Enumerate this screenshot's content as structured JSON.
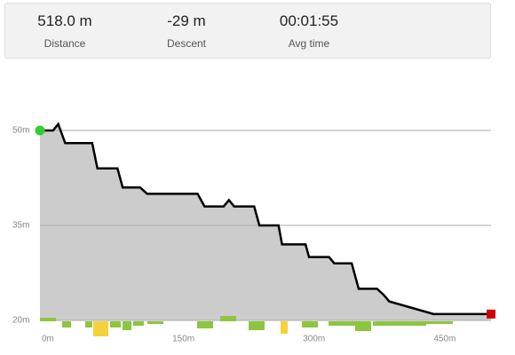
{
  "stats": [
    {
      "value": "518.0 m",
      "label": "Distance"
    },
    {
      "value": "-29 m",
      "label": "Descent"
    },
    {
      "value": "00:01:55",
      "label": "Avg time"
    }
  ],
  "chart_data": {
    "type": "area",
    "x": [
      0,
      15,
      21,
      29,
      60,
      66,
      89,
      95,
      115,
      123,
      181,
      189,
      211,
      217,
      223,
      246,
      252,
      274,
      278,
      305,
      309,
      332,
      338,
      358,
      366,
      387,
      395,
      401,
      452,
      518
    ],
    "values": [
      50,
      50,
      51,
      48,
      48,
      44,
      44,
      41,
      41,
      40,
      40,
      38,
      38,
      39,
      38,
      38,
      35,
      35,
      32,
      32,
      30,
      30,
      29,
      29,
      25,
      25,
      24,
      23,
      21,
      21
    ],
    "color": "#000000",
    "fill": "#cccccc",
    "xlim": [
      0,
      518
    ],
    "ylim": [
      20,
      50
    ],
    "xticks": [
      {
        "value": 0,
        "label": "0m"
      },
      {
        "value": 150,
        "label": "150m"
      },
      {
        "value": 300,
        "label": "300m"
      },
      {
        "value": 450,
        "label": "450m"
      }
    ],
    "yticks": [
      {
        "value": 20,
        "label": "20m"
      },
      {
        "value": 35,
        "label": "35m"
      },
      {
        "value": 50,
        "label": "50m"
      }
    ],
    "grid": true
  }
}
